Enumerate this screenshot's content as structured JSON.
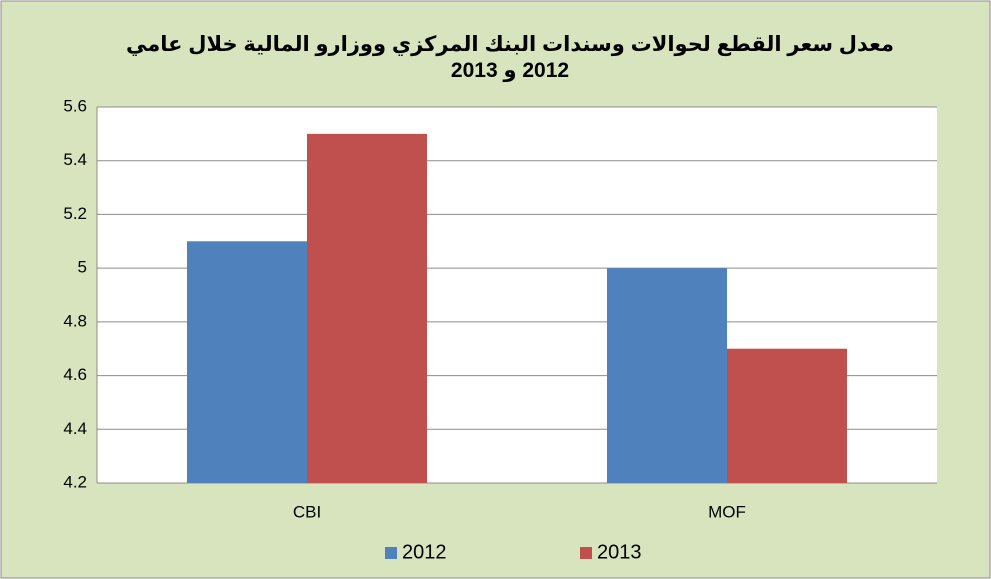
{
  "chart_data": {
    "type": "bar",
    "title": "معدل سعر القطع لحوالات وسندات البنك المركزي ووزارو المالية خلال عامي 2012 و 2013",
    "categories": [
      "CBI",
      "MOF"
    ],
    "series": [
      {
        "name": "2012",
        "color": "#4f81bd",
        "values": [
          5.1,
          5.0
        ]
      },
      {
        "name": "2013",
        "color": "#c0504d",
        "values": [
          5.5,
          4.7
        ]
      }
    ],
    "ylim": [
      4.2,
      5.6
    ],
    "yticks": [
      4.2,
      4.4,
      4.6,
      4.8,
      5,
      5.2,
      5.4,
      5.6
    ],
    "grid": true,
    "legend": "bottom"
  }
}
